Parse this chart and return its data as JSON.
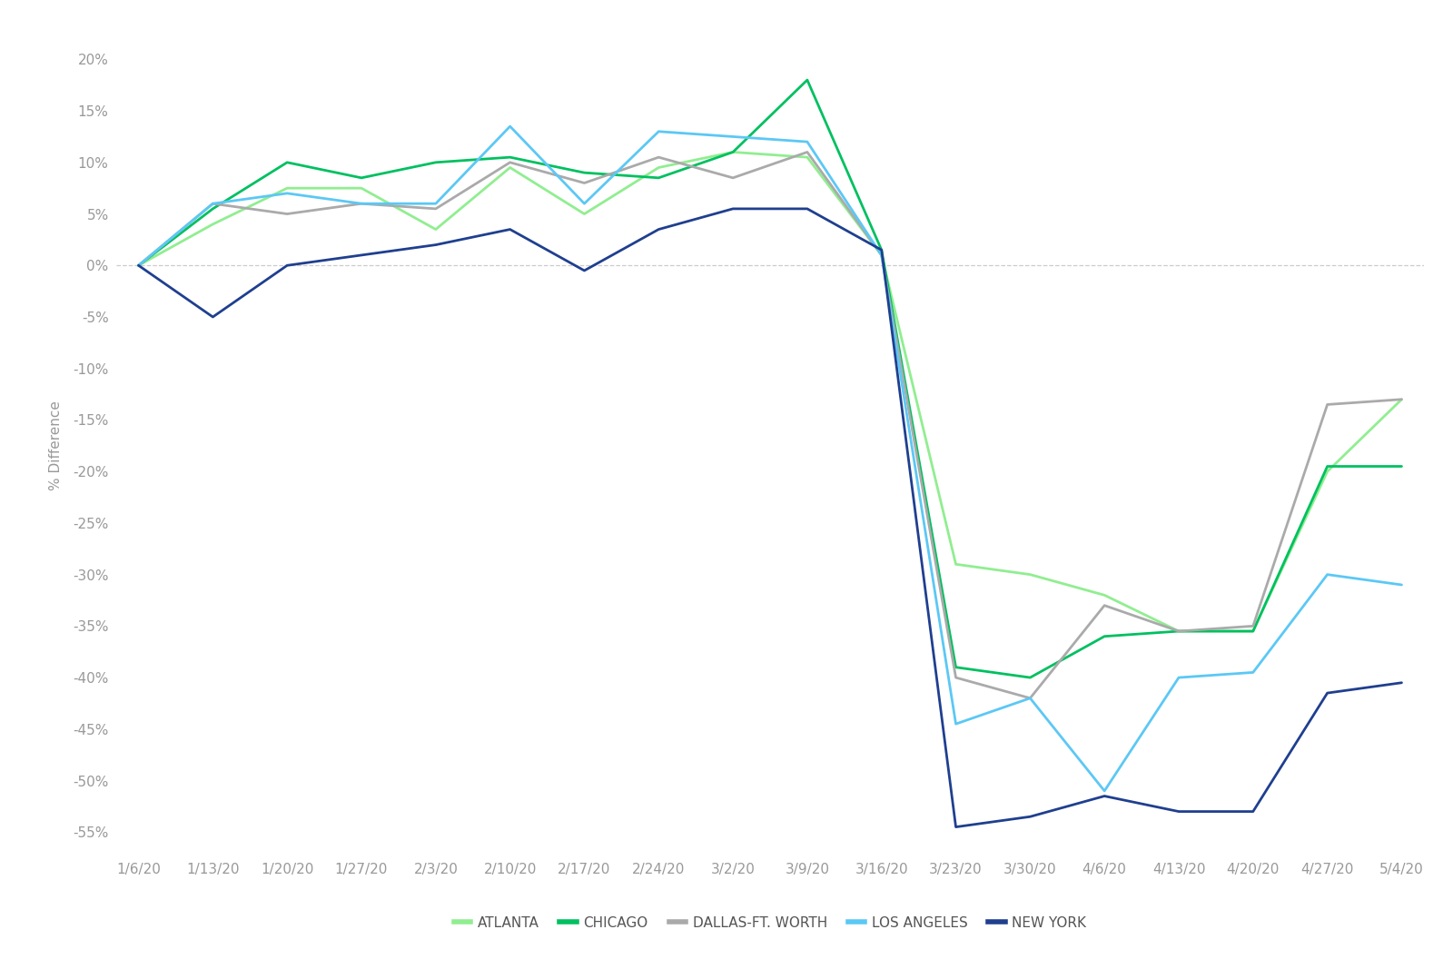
{
  "ylabel": "% Difference",
  "background_color": "#ffffff",
  "x_labels": [
    "1/6/20",
    "1/13/20",
    "1/20/20",
    "1/27/20",
    "2/3/20",
    "2/10/20",
    "2/17/20",
    "2/24/20",
    "3/2/20",
    "3/9/20",
    "3/16/20",
    "3/23/20",
    "3/30/20",
    "4/6/20",
    "4/13/20",
    "4/20/20",
    "4/27/20",
    "5/4/20"
  ],
  "series": [
    {
      "name": "ATLANTA",
      "color": "#90EE90",
      "linewidth": 2.0,
      "data": [
        0.0,
        4.0,
        7.5,
        7.5,
        3.5,
        9.5,
        5.0,
        9.5,
        11.0,
        10.5,
        1.0,
        -29.0,
        -30.0,
        -32.0,
        -35.5,
        -35.5,
        -20.0,
        -13.0
      ]
    },
    {
      "name": "CHICAGO",
      "color": "#00C060",
      "linewidth": 2.0,
      "data": [
        0.0,
        5.5,
        10.0,
        8.5,
        10.0,
        10.5,
        9.0,
        8.5,
        11.0,
        18.0,
        1.5,
        -39.0,
        -40.0,
        -36.0,
        -35.5,
        -35.5,
        -19.5,
        -19.5
      ]
    },
    {
      "name": "DALLAS-FT. WORTH",
      "color": "#AAAAAA",
      "linewidth": 2.0,
      "data": [
        0.0,
        6.0,
        5.0,
        6.0,
        5.5,
        10.0,
        8.0,
        10.5,
        8.5,
        11.0,
        1.0,
        -40.0,
        -42.0,
        -33.0,
        -35.5,
        -35.0,
        -13.5,
        -13.0
      ]
    },
    {
      "name": "LOS ANGELES",
      "color": "#5BC8F5",
      "linewidth": 2.0,
      "data": [
        0.0,
        6.0,
        7.0,
        6.0,
        6.0,
        13.5,
        6.0,
        13.0,
        12.5,
        12.0,
        1.0,
        -44.5,
        -42.0,
        -51.0,
        -40.0,
        -39.5,
        -30.0,
        -31.0
      ]
    },
    {
      "name": "NEW YORK",
      "color": "#1F3F8F",
      "linewidth": 2.0,
      "data": [
        0.0,
        -5.0,
        0.0,
        1.0,
        2.0,
        3.5,
        -0.5,
        3.5,
        5.5,
        5.5,
        1.5,
        -54.5,
        -53.5,
        -51.5,
        -53.0,
        -53.0,
        -41.5,
        -40.5
      ]
    }
  ],
  "ylim": [
    -57,
    22
  ],
  "yticks": [
    20,
    15,
    10,
    5,
    0,
    -5,
    -10,
    -15,
    -20,
    -25,
    -30,
    -35,
    -40,
    -45,
    -50,
    -55
  ],
  "legend_entries": [
    "ATLANTA",
    "CHICAGO",
    "DALLAS-FT. WORTH",
    "LOS ANGELES",
    "NEW YORK"
  ],
  "legend_colors": [
    "#90EE90",
    "#00C060",
    "#AAAAAA",
    "#5BC8F5",
    "#1F3F8F"
  ],
  "tick_color": "#999999",
  "tick_fontsize": 11
}
